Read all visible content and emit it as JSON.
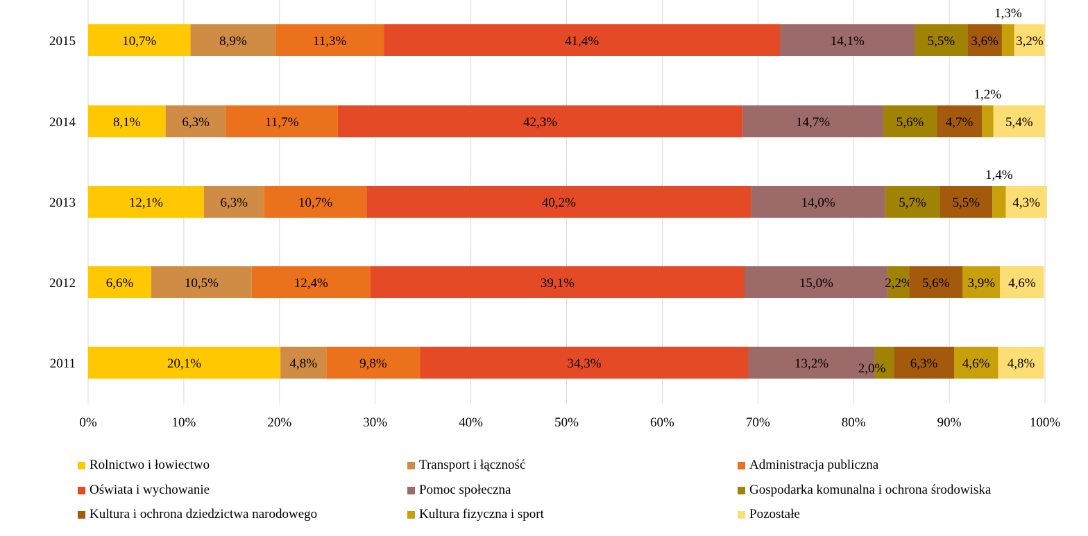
{
  "chart_data": {
    "type": "bar",
    "orientation": "horizontal",
    "stacked": "percent",
    "categories": [
      "2015",
      "2014",
      "2013",
      "2012",
      "2011"
    ],
    "series": [
      {
        "name": "Rolnictwo i łowiectwo",
        "color": "#FFC800",
        "values": [
          10.7,
          8.1,
          12.1,
          6.6,
          20.1
        ],
        "labels": [
          "10,7%",
          "8,1%",
          "12,1%",
          "6,6%",
          "20,1%"
        ]
      },
      {
        "name": "Transport i łączność",
        "color": "#D08C44",
        "values": [
          8.9,
          6.3,
          6.3,
          10.5,
          4.8
        ],
        "labels": [
          "8,9%",
          "6,3%",
          "6,3%",
          "10,5%",
          "4,8%"
        ]
      },
      {
        "name": "Administracja publiczna",
        "color": "#EC711C",
        "values": [
          11.3,
          11.7,
          10.7,
          12.4,
          9.8
        ],
        "labels": [
          "11,3%",
          "11,7%",
          "10,7%",
          "12,4%",
          "9,8%"
        ]
      },
      {
        "name": "Oświata i wychowanie",
        "color": "#E44A25",
        "values": [
          41.4,
          42.3,
          40.2,
          39.1,
          34.3
        ],
        "labels": [
          "41,4%",
          "42,3%",
          "40,2%",
          "39,1%",
          "34,3%"
        ]
      },
      {
        "name": "Pomoc społeczna",
        "color": "#9C6B69",
        "values": [
          14.1,
          14.7,
          14.0,
          15.0,
          13.2
        ],
        "labels": [
          "14,1%",
          "14,7%",
          "14,0%",
          "15,0%",
          "13,2%"
        ]
      },
      {
        "name": "Gospodarka komunalna i ochrona środowiska",
        "color": "#A08204",
        "values": [
          5.5,
          5.6,
          5.7,
          2.2,
          2.0
        ],
        "labels": [
          "5,5%",
          "5,6%",
          "5,7%",
          "2,2%",
          "2,0%"
        ]
      },
      {
        "name": "Kultura i ochrona dziedzictwa narodowego",
        "color": "#A45A0C",
        "values": [
          3.6,
          4.7,
          5.5,
          5.6,
          6.3
        ],
        "labels": [
          "3,6%",
          "4,7%",
          "5,5%",
          "5,6%",
          "6,3%"
        ]
      },
      {
        "name": "Kultura fizyczna i sport",
        "color": "#C8A00C",
        "values": [
          1.3,
          1.2,
          1.4,
          3.9,
          4.6
        ],
        "labels": [
          "1,3%",
          "1,2%",
          "1,4%",
          "3,9%",
          "4,6%"
        ]
      },
      {
        "name": "Pozostałe",
        "color": "#FCDE74",
        "values": [
          3.2,
          5.4,
          4.3,
          4.6,
          4.8
        ],
        "labels": [
          "3,2%",
          "5,4%",
          "4,3%",
          "4,6%",
          "4,8%"
        ]
      }
    ],
    "xlim": [
      0,
      100
    ],
    "xticks": [
      "0%",
      "10%",
      "20%",
      "30%",
      "40%",
      "50%",
      "60%",
      "70%",
      "80%",
      "90%",
      "100%"
    ],
    "grid": true,
    "legend_position": "bottom",
    "title": "",
    "xlabel": "",
    "ylabel": ""
  }
}
